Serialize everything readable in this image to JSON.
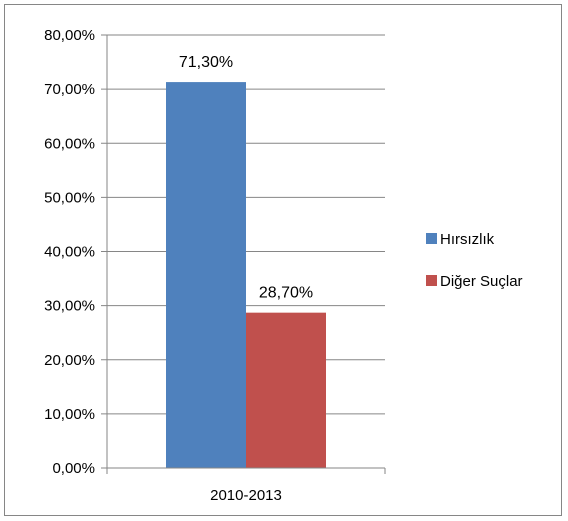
{
  "chart_data": {
    "type": "bar",
    "categories": [
      "2010-2013"
    ],
    "series": [
      {
        "name": "Hırsızlık",
        "values": [
          71.3
        ],
        "label": "71,30%",
        "color": "#4F81BD"
      },
      {
        "name": "Diğer Suçlar",
        "values": [
          28.7
        ],
        "label": "28,70%",
        "color": "#C0504D"
      }
    ],
    "y_ticks": [
      "0,00%",
      "10,00%",
      "20,00%",
      "30,00%",
      "40,00%",
      "50,00%",
      "60,00%",
      "70,00%",
      "80,00%"
    ],
    "ylim": [
      0,
      80
    ],
    "y_step": 10,
    "grid": true,
    "legend_position": "right",
    "title": "",
    "xlabel": "",
    "ylabel": ""
  }
}
